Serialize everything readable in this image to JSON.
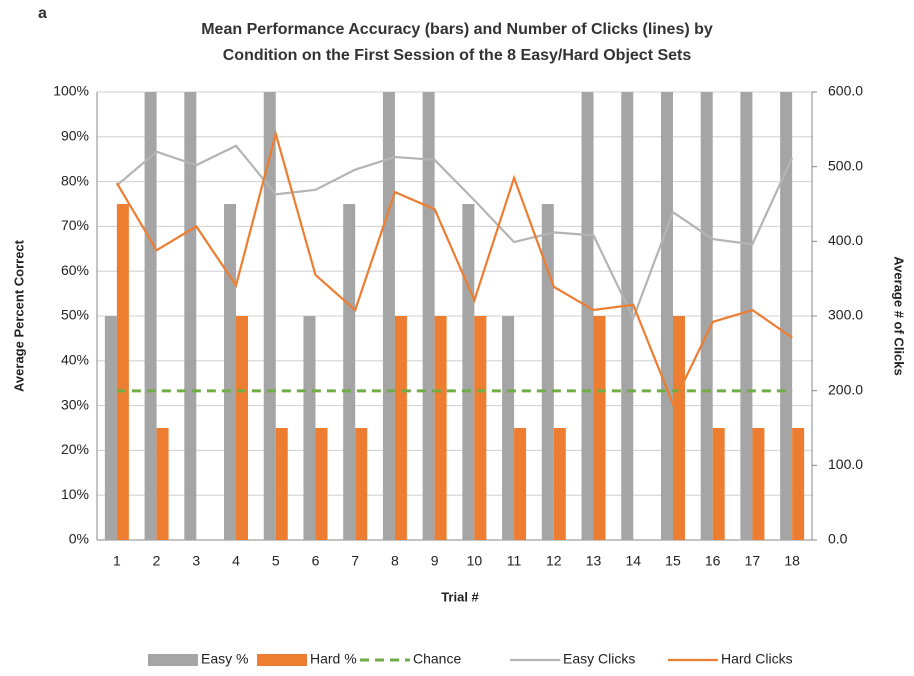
{
  "chart_data": {
    "type": "combo",
    "panel_label": "a",
    "title": [
      "Mean Performance Accuracy (bars) and Number of Clicks (lines) by",
      "Condition on the First Session of the 8 Easy/Hard Object Sets"
    ],
    "x_label": "Trial #",
    "y_label": "Average Percent Correct",
    "y2_label": "Average # of Clicks",
    "categories": [
      "1",
      "2",
      "3",
      "4",
      "5",
      "6",
      "7",
      "8",
      "9",
      "10",
      "11",
      "12",
      "13",
      "14",
      "15",
      "16",
      "17",
      "18"
    ],
    "ylim": [
      0,
      100
    ],
    "yticks": [
      {
        "value": 0,
        "label": "0%"
      },
      {
        "value": 10,
        "label": "10%"
      },
      {
        "value": 20,
        "label": "20%"
      },
      {
        "value": 30,
        "label": "30%"
      },
      {
        "value": 40,
        "label": "40%"
      },
      {
        "value": 50,
        "label": "50%"
      },
      {
        "value": 60,
        "label": "60%"
      },
      {
        "value": 70,
        "label": "70%"
      },
      {
        "value": 80,
        "label": "80%"
      },
      {
        "value": 90,
        "label": "90%"
      },
      {
        "value": 100,
        "label": "100%"
      }
    ],
    "y2lim": [
      0,
      600
    ],
    "y2ticks": [
      {
        "value": 0,
        "label": "0.0"
      },
      {
        "value": 100,
        "label": "100.0"
      },
      {
        "value": 200,
        "label": "200.0"
      },
      {
        "value": 300,
        "label": "300.0"
      },
      {
        "value": 400,
        "label": "400.0"
      },
      {
        "value": 500,
        "label": "500.0"
      },
      {
        "value": 600,
        "label": "600.0"
      }
    ],
    "grid": true,
    "legend": "bottom",
    "series": [
      {
        "name": "Easy %",
        "type": "bar",
        "color": "#a5a5a5",
        "values": [
          50,
          100,
          100,
          75,
          100,
          50,
          75,
          100,
          100,
          75,
          50,
          75,
          100,
          100,
          100,
          100,
          100,
          100
        ]
      },
      {
        "name": "Hard %",
        "type": "bar",
        "color": "#ed7d31",
        "values": [
          75,
          25,
          0,
          50,
          25,
          25,
          25,
          50,
          50,
          50,
          25,
          25,
          50,
          0,
          50,
          25,
          25,
          25
        ]
      },
      {
        "name": "Chance",
        "type": "line",
        "dashed": true,
        "color": "#70ad47",
        "values": [
          33.3,
          33.3,
          33.3,
          33.3,
          33.3,
          33.3,
          33.3,
          33.3,
          33.3,
          33.3,
          33.3,
          33.3,
          33.3,
          33.3,
          33.3,
          33.3,
          33.3,
          33.3
        ]
      },
      {
        "name": "Easy Clicks",
        "type": "line",
        "axis": "y2",
        "color": "#b4b4b4",
        "values": [
          475,
          520,
          502,
          528,
          463,
          469,
          496,
          513,
          509,
          455,
          399,
          412,
          408,
          297,
          439,
          403,
          396,
          512
        ]
      },
      {
        "name": "Hard Clicks",
        "type": "line",
        "axis": "y2",
        "color": "#ed7d31",
        "values": [
          478,
          388,
          420,
          341,
          544,
          355,
          308,
          466,
          443,
          321,
          485,
          339,
          308,
          315,
          182,
          292,
          308,
          271
        ]
      }
    ]
  }
}
